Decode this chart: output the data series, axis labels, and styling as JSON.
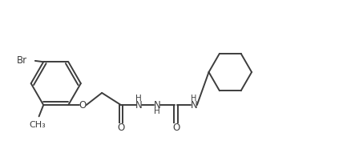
{
  "bg_color": "#ffffff",
  "line_color": "#3d3d3d",
  "text_color": "#3d3d3d",
  "line_width": 1.4,
  "font_size": 8.5,
  "figsize": [
    4.33,
    1.91
  ],
  "dpi": 100,
  "xlim": [
    0.0,
    10.0
  ],
  "ylim": [
    0.5,
    4.8
  ]
}
